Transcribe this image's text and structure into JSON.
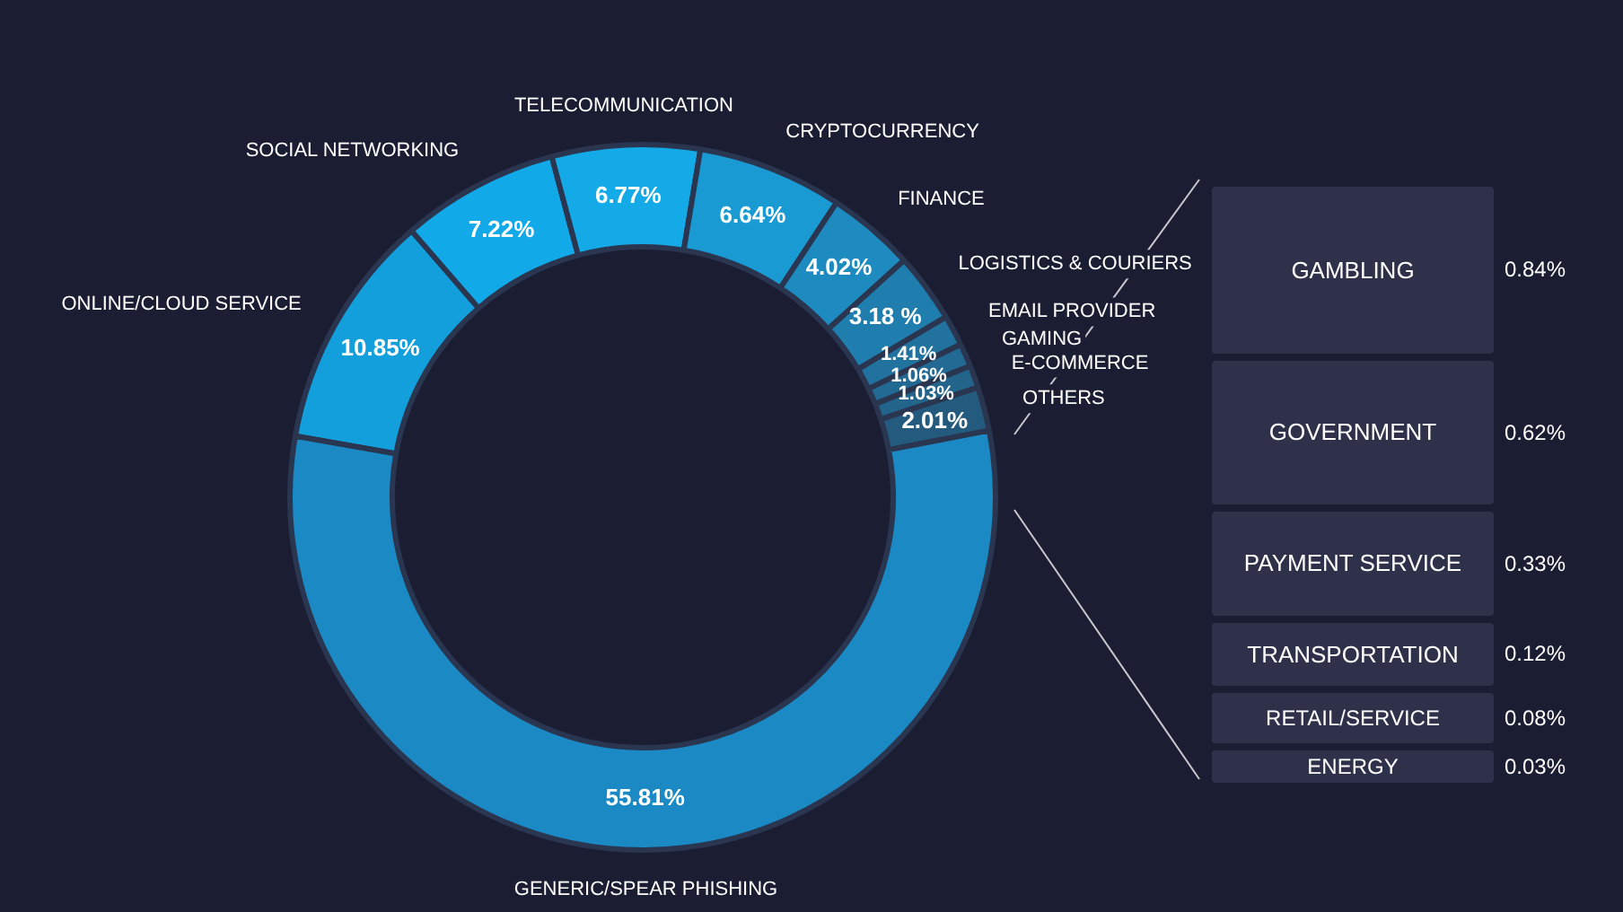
{
  "chart_data": [
    {
      "type": "donut",
      "categories": [
        "ONLINE/CLOUD SERVICE",
        "SOCIAL NETWORKING",
        "TELECOMMUNICATION",
        "CRYPTOCURRENCY",
        "FINANCE",
        "LOGISTICS & COURIERS",
        "EMAIL PROVIDER",
        "GAMING",
        "E-COMMERCE",
        "OTHERS",
        "GENERIC/SPEAR PHISHING"
      ],
      "values": [
        10.85,
        7.22,
        6.77,
        6.64,
        4.02,
        3.18,
        1.41,
        1.06,
        1.03,
        2.01,
        55.81
      ],
      "value_labels": [
        "10.85%",
        "7.22%",
        "6.77%",
        "6.64%",
        "4.02%",
        "3.18 %",
        "1.41%",
        "1.06%",
        "1.03%",
        "2.01%",
        "55.81%"
      ],
      "colors": [
        "#139fdc",
        "#12a9e9",
        "#14aae8",
        "#1a9ad3",
        "#1d8bbf",
        "#1f7eae",
        "#21729e",
        "#226a93",
        "#23648b",
        "#245a7e",
        "#1b8ac4"
      ],
      "legend": false
    },
    {
      "type": "other",
      "categories": [
        "GAMBLING",
        "GOVERNMENT",
        "PAYMENT SERVICE",
        "TRANSPORTATION",
        "RETAIL/SERVICE",
        "ENERGY"
      ],
      "values": [
        0.84,
        0.62,
        0.33,
        0.12,
        0.08,
        0.03
      ],
      "value_labels": [
        "0.84%",
        "0.62%",
        "0.33%",
        "0.12%",
        "0.08%",
        "0.03%"
      ],
      "colors": [
        "#2e3149",
        "#2e3149",
        "#2e3149",
        "#2e3149",
        "#2e3149",
        "#2e3149"
      ]
    }
  ]
}
